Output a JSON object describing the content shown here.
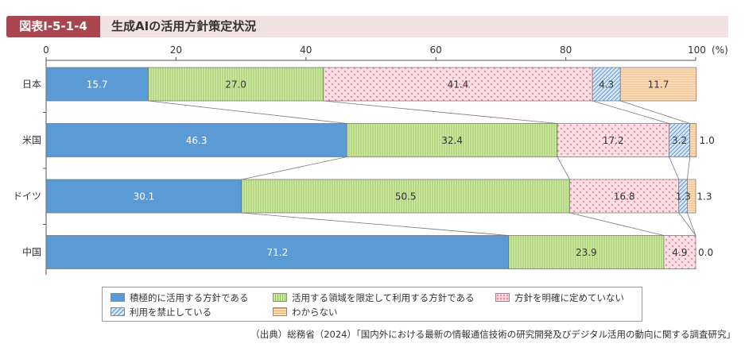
{
  "header": {
    "figure_id": "図表Ⅰ-5-1-4",
    "title": "生成AIの活用方針策定状況"
  },
  "chart_data": {
    "type": "bar",
    "orientation": "horizontal",
    "stacked": true,
    "x_ticks": [
      "0",
      "20",
      "40",
      "60",
      "80",
      "100"
    ],
    "x_unit": "(%)",
    "xlim": [
      0,
      100
    ],
    "categories": [
      "日本",
      "米国",
      "ドイツ",
      "中国"
    ],
    "series": [
      {
        "name": "積極的に活用する方針である",
        "values": [
          15.7,
          46.3,
          30.1,
          71.2
        ],
        "labels": [
          "15.7",
          "46.3",
          "30.1",
          "71.2"
        ],
        "color": "#5b9bd5"
      },
      {
        "name": "活用する領域を限定して利用する方針である",
        "values": [
          27.0,
          32.4,
          50.5,
          23.9
        ],
        "labels": [
          "27.0",
          "32.4",
          "50.5",
          "23.9"
        ],
        "color": "#c5e59a"
      },
      {
        "name": "方針を明確に定めていない",
        "values": [
          41.4,
          17.2,
          16.8,
          4.9
        ],
        "labels": [
          "41.4",
          "17.2",
          "16.8",
          "4.9"
        ],
        "color": "#fbd3dc"
      },
      {
        "name": "利用を禁止している",
        "values": [
          4.3,
          3.2,
          1.3,
          0.0
        ],
        "labels": [
          "4.3",
          "3.2",
          "1.3",
          "0.0"
        ],
        "color": "#b9d3f0"
      },
      {
        "name": "わからない",
        "values": [
          11.7,
          1.0,
          1.3,
          0.0
        ],
        "labels": [
          "11.7",
          "1.0",
          "1.3",
          ""
        ],
        "color": "#f9ce9e"
      }
    ],
    "connector_lines": true,
    "grid": false,
    "legend_position": "bottom"
  },
  "source": "（出典）総務省（2024）「国内外における最新の情報通信技術の研究開発及びデジタル活用の動向に関する調査研究」"
}
